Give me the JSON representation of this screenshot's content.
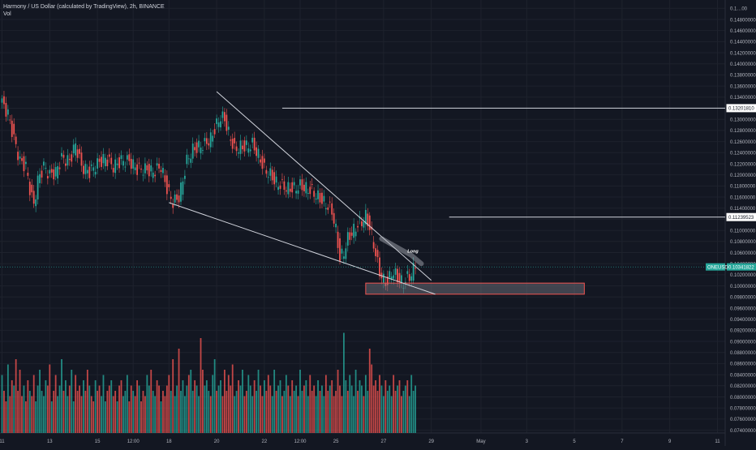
{
  "header": {
    "title": "Harmony / US Dollar (calculated by TradingView), 2h, BINANCE",
    "volume_label": "Vol"
  },
  "colors": {
    "background": "#131722",
    "up": "#26a69a",
    "down": "#ef5350",
    "grid": "#1e222d",
    "axis_text": "#b2b5be",
    "line": "#d1d4dc",
    "current_price": "#26a69a",
    "zone": "#ef5350"
  },
  "chart_data": {
    "type": "candlestick",
    "title": "Harmony / US Dollar (calculated by TradingView), 2h, BINANCE",
    "ylim": [
      0.0735,
      0.1515
    ],
    "y_ticks": [
      0.074,
      0.076,
      0.078,
      0.08,
      0.082,
      0.084,
      0.086,
      0.088,
      0.09,
      0.092,
      0.094,
      0.096,
      0.098,
      0.1,
      0.102,
      0.104,
      0.106,
      0.108,
      0.11,
      0.112,
      0.114,
      0.116,
      0.118,
      0.12,
      0.122,
      0.124,
      0.126,
      0.128,
      0.13,
      0.132,
      0.134,
      0.136,
      0.138,
      0.14,
      0.142,
      0.144,
      0.146,
      0.148,
      0.15
    ],
    "y_tick_labels": [
      "0.07400000",
      "0.07600000",
      "0.07800000",
      "0.08000000",
      "0.08200000",
      "0.08400000",
      "0.08600000",
      "0.08800000",
      "0.09000000",
      "0.09200000",
      "0.09400000",
      "0.09600000",
      "0.09800000",
      "0.10000000",
      "0.10200000",
      "0.10400000",
      "0.10600000",
      "0.10800000",
      "0.11000000",
      "0.11200000",
      "0.11400000",
      "0.11600000",
      "0.11800000",
      "0.12000000",
      "0.12200000",
      "0.12400000",
      "0.12600000",
      "0.12800000",
      "0.13000000",
      "0.13200000",
      "0.13400000",
      "0.13600000",
      "0.13800000",
      "0.14000000",
      "0.14200000",
      "0.14400000",
      "0.14600000",
      "0.14800000",
      "0.1…00"
    ],
    "x_ticks": [
      {
        "label": "11",
        "i": 0
      },
      {
        "label": "13",
        "i": 24
      },
      {
        "label": "15",
        "i": 48
      },
      {
        "label": "12:00",
        "i": 66
      },
      {
        "label": "18",
        "i": 84
      },
      {
        "label": "20",
        "i": 108
      },
      {
        "label": "22",
        "i": 132
      },
      {
        "label": "12:00",
        "i": 150
      },
      {
        "label": "25",
        "i": 168
      },
      {
        "label": "27",
        "i": 192
      },
      {
        "label": "29",
        "i": 216
      },
      {
        "label": "May",
        "i": 241
      },
      {
        "label": "3",
        "i": 264
      },
      {
        "label": "5",
        "i": 288
      },
      {
        "label": "7",
        "i": 312
      },
      {
        "label": "9",
        "i": 336
      },
      {
        "label": "11",
        "i": 360
      }
    ],
    "bar_count": 209,
    "anchors": [
      [
        0,
        0.133
      ],
      [
        3,
        0.131
      ],
      [
        6,
        0.1265
      ],
      [
        9,
        0.1225
      ],
      [
        12,
        0.1215
      ],
      [
        14,
        0.1175
      ],
      [
        16,
        0.1145
      ],
      [
        18,
        0.119
      ],
      [
        21,
        0.1215
      ],
      [
        24,
        0.12
      ],
      [
        27,
        0.1205
      ],
      [
        30,
        0.123
      ],
      [
        34,
        0.1225
      ],
      [
        37,
        0.1255
      ],
      [
        40,
        0.1215
      ],
      [
        44,
        0.1205
      ],
      [
        48,
        0.122
      ],
      [
        52,
        0.123
      ],
      [
        56,
        0.1215
      ],
      [
        60,
        0.1225
      ],
      [
        64,
        0.1225
      ],
      [
        68,
        0.121
      ],
      [
        72,
        0.121
      ],
      [
        76,
        0.1205
      ],
      [
        80,
        0.1215
      ],
      [
        83,
        0.1175
      ],
      [
        86,
        0.115
      ],
      [
        89,
        0.116
      ],
      [
        91,
        0.119
      ],
      [
        93,
        0.1225
      ],
      [
        96,
        0.1245
      ],
      [
        99,
        0.125
      ],
      [
        102,
        0.1255
      ],
      [
        105,
        0.1265
      ],
      [
        108,
        0.129
      ],
      [
        110,
        0.1305
      ],
      [
        112,
        0.13
      ],
      [
        114,
        0.1275
      ],
      [
        117,
        0.1245
      ],
      [
        120,
        0.125
      ],
      [
        123,
        0.125
      ],
      [
        126,
        0.1255
      ],
      [
        129,
        0.1235
      ],
      [
        132,
        0.121
      ],
      [
        135,
        0.12
      ],
      [
        138,
        0.1185
      ],
      [
        141,
        0.118
      ],
      [
        144,
        0.1175
      ],
      [
        147,
        0.1175
      ],
      [
        150,
        0.118
      ],
      [
        153,
        0.1175
      ],
      [
        156,
        0.117
      ],
      [
        159,
        0.116
      ],
      [
        162,
        0.115
      ],
      [
        166,
        0.1135
      ],
      [
        168,
        0.11
      ],
      [
        170,
        0.105
      ],
      [
        172,
        0.106
      ],
      [
        174,
        0.1085
      ],
      [
        176,
        0.1095
      ],
      [
        179,
        0.111
      ],
      [
        181,
        0.1115
      ],
      [
        183,
        0.1125
      ],
      [
        185,
        0.1105
      ],
      [
        187,
        0.1075
      ],
      [
        189,
        0.104
      ],
      [
        190,
        0.1025
      ],
      [
        192,
        0.101
      ],
      [
        194,
        0.1005
      ],
      [
        196,
        0.1025
      ],
      [
        198,
        0.102
      ],
      [
        200,
        0.101
      ],
      [
        202,
        0.1005
      ],
      [
        204,
        0.1015
      ],
      [
        206,
        0.102
      ],
      [
        208,
        0.104
      ]
    ],
    "volume_heights_pct": [
      55,
      40,
      30,
      65,
      35,
      50,
      45,
      70,
      40,
      60,
      35,
      45,
      30,
      50,
      40,
      35,
      55,
      30,
      45,
      60,
      40,
      35,
      50,
      45,
      65,
      30,
      40,
      55,
      35,
      45,
      70,
      40,
      50,
      35,
      45,
      60,
      30,
      55,
      40,
      45,
      35,
      50,
      40,
      60,
      45,
      35,
      30,
      50,
      40,
      45,
      35,
      55,
      30,
      40,
      45,
      50,
      35,
      40,
      30,
      45,
      50,
      35,
      40,
      55,
      30,
      45,
      40,
      35,
      50,
      45,
      30,
      40,
      35,
      55,
      45,
      60,
      40,
      35,
      50,
      45,
      30,
      40,
      35,
      45,
      55,
      40,
      70,
      35,
      45,
      80,
      40,
      50,
      35,
      45,
      55,
      60,
      40,
      50,
      45,
      35,
      90,
      60,
      45,
      50,
      40,
      35,
      55,
      70,
      40,
      45,
      50,
      35,
      60,
      40,
      55,
      45,
      65,
      35,
      40,
      50,
      45,
      60,
      35,
      40,
      55,
      45,
      35,
      50,
      40,
      60,
      45,
      35,
      50,
      40,
      55,
      45,
      35,
      60,
      40,
      45,
      50,
      35,
      40,
      55,
      45,
      35,
      50,
      40,
      45,
      35,
      60,
      40,
      45,
      50,
      35,
      55,
      40,
      45,
      35,
      50,
      40,
      45,
      35,
      55,
      40,
      45,
      50,
      35,
      40,
      60,
      45,
      35,
      95,
      50,
      40,
      55,
      45,
      35,
      60,
      40,
      50,
      45,
      35,
      55,
      40,
      80,
      65,
      45,
      50,
      40,
      55,
      45,
      35,
      50,
      40,
      45,
      35,
      55,
      40,
      45,
      50,
      35,
      40,
      45,
      50,
      35,
      55,
      40,
      45
    ],
    "drawings": {
      "upper_trendline": [
        [
          108,
          0.135
        ],
        [
          216,
          0.101
        ]
      ],
      "lower_trendline": [
        [
          84,
          0.115
        ],
        [
          218,
          0.0985
        ]
      ],
      "resistance_1": {
        "value": 0.1320181,
        "label": "0.13201810",
        "from_i": 141
      },
      "resistance_2": {
        "value": 0.11239523,
        "label": "0.11239523",
        "from_i": 225
      },
      "current_price": {
        "value": 0.10341822,
        "label": "0.10341822",
        "symbol": "ONEUSD"
      },
      "support_zone": {
        "from_i": 183,
        "to_i": 293,
        "top": 0.1005,
        "bottom": 0.0985
      },
      "arrow_path": [
        [
          191,
          0.1085
        ],
        [
          196,
          0.1075
        ],
        [
          201,
          0.1065
        ],
        [
          206,
          0.1055
        ],
        [
          211,
          0.104
        ]
      ],
      "arrow_label": "Long",
      "arrow_label_at": [
        204,
        0.106
      ]
    }
  }
}
